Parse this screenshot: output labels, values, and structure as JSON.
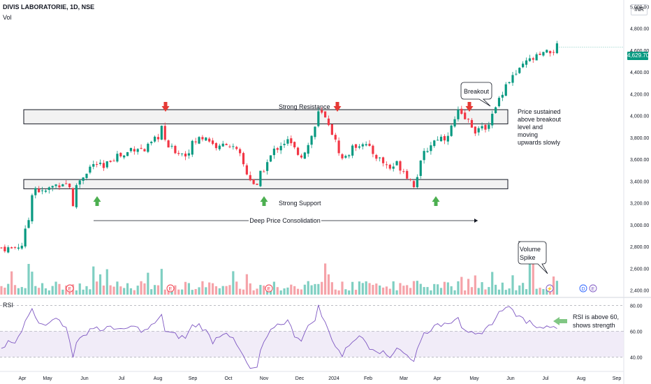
{
  "header": {
    "title": "DIVIS LABORATORIE, 1D, NSE",
    "indicator": "Vol",
    "currency": "INR",
    "last_price": "4,629.70",
    "rsi_label": "RSI"
  },
  "colors": {
    "up": "#089981",
    "down": "#f23645",
    "vol_up": "#7fcfc2",
    "vol_down": "#f5a3a9",
    "rsi_line": "#7e57c2",
    "rsi_band": "#ede7f6",
    "annotation": "#131722",
    "arrow_up": "#4caf50",
    "arrow_down": "#e53935"
  },
  "chart_data": {
    "type": "candlestick",
    "symbol": "DIVIS LABORATORIE",
    "interval": "1D",
    "exchange": "NSE",
    "y_price_ticks": [
      "5,000.00",
      "4,800.00",
      "4,600.00",
      "4,400.00",
      "4,200.00",
      "4,000.00",
      "3,800.00",
      "3,600.00",
      "3,400.00",
      "3,200.00",
      "3,000.00",
      "2,800.00",
      "2,600.00",
      "2,400.00"
    ],
    "y_price_values": [
      5000,
      4800,
      4600,
      4400,
      4200,
      4000,
      3800,
      3600,
      3400,
      3200,
      3000,
      2800,
      2600,
      2400
    ],
    "ylim": [
      2360,
      5060
    ],
    "x_ticks": [
      "Apr",
      "May",
      "Jun",
      "Jul",
      "Aug",
      "Sep",
      "Oct",
      "Nov",
      "Dec",
      "2024",
      "Feb",
      "Mar",
      "Apr",
      "May",
      "Jun",
      "Jul",
      "Aug",
      "Sep"
    ],
    "last_price": 4629.7,
    "close_path": [
      [
        0,
        2790
      ],
      [
        3,
        2780
      ],
      [
        6,
        2820
      ],
      [
        8,
        3050
      ],
      [
        9,
        3300
      ],
      [
        10,
        3340
      ],
      [
        12,
        3290
      ],
      [
        15,
        3350
      ],
      [
        18,
        3390
      ],
      [
        20,
        3360
      ],
      [
        21,
        3150
      ],
      [
        22,
        3370
      ],
      [
        24,
        3450
      ],
      [
        26,
        3530
      ],
      [
        28,
        3560
      ],
      [
        30,
        3510
      ],
      [
        32,
        3600
      ],
      [
        34,
        3640
      ],
      [
        36,
        3630
      ],
      [
        38,
        3700
      ],
      [
        40,
        3710
      ],
      [
        42,
        3680
      ],
      [
        44,
        3740
      ],
      [
        46,
        3810
      ],
      [
        47,
        3900
      ],
      [
        48,
        3750
      ],
      [
        50,
        3690
      ],
      [
        52,
        3670
      ],
      [
        54,
        3640
      ],
      [
        56,
        3740
      ],
      [
        58,
        3790
      ],
      [
        60,
        3810
      ],
      [
        62,
        3740
      ],
      [
        64,
        3700
      ],
      [
        66,
        3760
      ],
      [
        68,
        3700
      ],
      [
        70,
        3630
      ],
      [
        72,
        3470
      ],
      [
        74,
        3380
      ],
      [
        75,
        3340
      ],
      [
        76,
        3460
      ],
      [
        78,
        3570
      ],
      [
        80,
        3680
      ],
      [
        82,
        3740
      ],
      [
        84,
        3770
      ],
      [
        86,
        3690
      ],
      [
        88,
        3640
      ],
      [
        90,
        3730
      ],
      [
        92,
        3900
      ],
      [
        93,
        4020
      ],
      [
        94,
        4010
      ],
      [
        96,
        3930
      ],
      [
        98,
        3760
      ],
      [
        100,
        3600
      ],
      [
        102,
        3660
      ],
      [
        104,
        3730
      ],
      [
        106,
        3760
      ],
      [
        108,
        3690
      ],
      [
        110,
        3630
      ],
      [
        112,
        3570
      ],
      [
        114,
        3520
      ],
      [
        116,
        3560
      ],
      [
        118,
        3500
      ],
      [
        120,
        3410
      ],
      [
        121,
        3370
      ],
      [
        122,
        3460
      ],
      [
        124,
        3650
      ],
      [
        126,
        3740
      ],
      [
        128,
        3800
      ],
      [
        130,
        3800
      ],
      [
        132,
        3890
      ],
      [
        134,
        4030
      ],
      [
        135,
        3990
      ],
      [
        137,
        3950
      ],
      [
        139,
        3870
      ],
      [
        141,
        3870
      ],
      [
        143,
        3940
      ],
      [
        145,
        4060
      ],
      [
        146,
        4160
      ],
      [
        148,
        4290
      ],
      [
        150,
        4360
      ],
      [
        152,
        4410
      ],
      [
        154,
        4490
      ],
      [
        156,
        4520
      ],
      [
        158,
        4550
      ],
      [
        160,
        4570
      ],
      [
        162,
        4600
      ],
      [
        163,
        4630
      ]
    ],
    "levels": [
      {
        "name": "Strong Resistance",
        "low": 3925,
        "high": 4055
      },
      {
        "name": "Strong Support",
        "low": 3330,
        "high": 3415
      }
    ],
    "annotations": [
      "Strong Resistance",
      "Strong Support",
      "Deep Price Consolidation",
      "Breakout",
      "Price sustained above breakout level and moving upwards slowly",
      "Volume Spike",
      "RSI is above 60, shows strength"
    ],
    "rsi": {
      "ticks": [
        "80.00",
        "60.00",
        "40.00"
      ],
      "tick_values": [
        80,
        60,
        40
      ],
      "band": [
        40,
        60
      ],
      "ylim": [
        30,
        85
      ],
      "path": [
        [
          0,
          45
        ],
        [
          2,
          52
        ],
        [
          4,
          50
        ],
        [
          6,
          60
        ],
        [
          7,
          68
        ],
        [
          8,
          74
        ],
        [
          9,
          79
        ],
        [
          10,
          72
        ],
        [
          12,
          64
        ],
        [
          14,
          68
        ],
        [
          15,
          70
        ],
        [
          17,
          68
        ],
        [
          18,
          64
        ],
        [
          19,
          63
        ],
        [
          20,
          54
        ],
        [
          21,
          41
        ],
        [
          22,
          50
        ],
        [
          24,
          56
        ],
        [
          26,
          62
        ],
        [
          28,
          63
        ],
        [
          30,
          60
        ],
        [
          32,
          64
        ],
        [
          34,
          62
        ],
        [
          36,
          60
        ],
        [
          38,
          64
        ],
        [
          40,
          62
        ],
        [
          42,
          60
        ],
        [
          44,
          64
        ],
        [
          46,
          68
        ],
        [
          47,
          74
        ],
        [
          48,
          60
        ],
        [
          50,
          58
        ],
        [
          52,
          56
        ],
        [
          54,
          55
        ],
        [
          56,
          64
        ],
        [
          58,
          65
        ],
        [
          60,
          60
        ],
        [
          62,
          52
        ],
        [
          64,
          57
        ],
        [
          66,
          60
        ],
        [
          68,
          53
        ],
        [
          70,
          45
        ],
        [
          72,
          35
        ],
        [
          73,
          31
        ],
        [
          74,
          30
        ],
        [
          75,
          32
        ],
        [
          76,
          45
        ],
        [
          78,
          55
        ],
        [
          80,
          64
        ],
        [
          82,
          66
        ],
        [
          84,
          68
        ],
        [
          86,
          57
        ],
        [
          88,
          54
        ],
        [
          90,
          63
        ],
        [
          92,
          70
        ],
        [
          93,
          79
        ],
        [
          94,
          72
        ],
        [
          96,
          60
        ],
        [
          98,
          49
        ],
        [
          100,
          41
        ],
        [
          102,
          50
        ],
        [
          104,
          55
        ],
        [
          106,
          55
        ],
        [
          108,
          48
        ],
        [
          110,
          46
        ],
        [
          112,
          43
        ],
        [
          114,
          40
        ],
        [
          116,
          48
        ],
        [
          118,
          44
        ],
        [
          120,
          38
        ],
        [
          121,
          36
        ],
        [
          122,
          48
        ],
        [
          124,
          58
        ],
        [
          126,
          62
        ],
        [
          128,
          64
        ],
        [
          130,
          66
        ],
        [
          132,
          68
        ],
        [
          134,
          72
        ],
        [
          135,
          64
        ],
        [
          137,
          60
        ],
        [
          139,
          56
        ],
        [
          141,
          57
        ],
        [
          143,
          64
        ],
        [
          145,
          70
        ],
        [
          146,
          74
        ],
        [
          148,
          80
        ],
        [
          150,
          76
        ],
        [
          152,
          70
        ],
        [
          154,
          68
        ],
        [
          156,
          66
        ],
        [
          158,
          62
        ],
        [
          160,
          66
        ],
        [
          162,
          62
        ],
        [
          163,
          64
        ]
      ]
    }
  }
}
